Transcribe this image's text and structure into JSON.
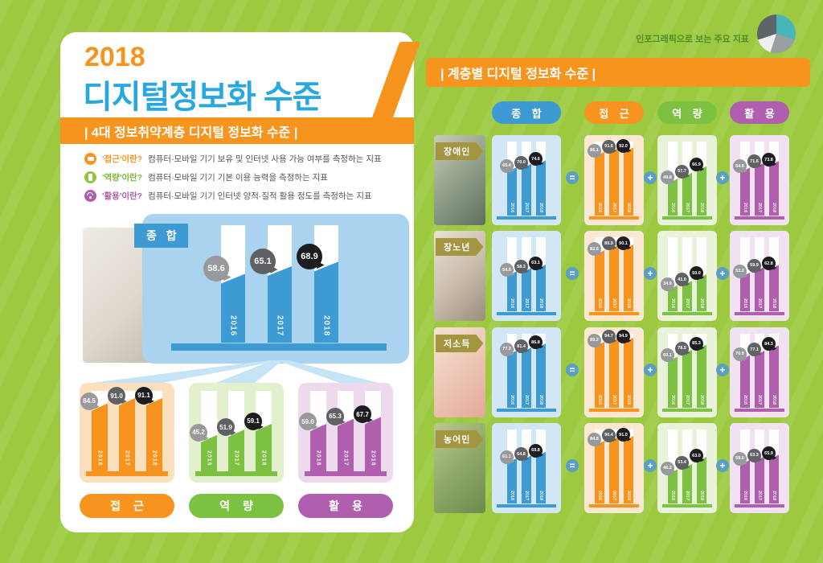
{
  "meta": {
    "note": "인포그래픽으로 보는 주요 지표"
  },
  "left": {
    "year": "2018",
    "title": "디지털정보화 수준",
    "subtitle": "| 4대 정보취약계층 디지털 정보화 수준 |",
    "legend": [
      {
        "term": "'접근'이란?",
        "desc": "컴퓨터·모바일 기기 보유 및 인터넷 사용 가능 여부를 측정하는 지표",
        "color": "#f7941d",
        "icon": "monitor-icon"
      },
      {
        "term": "'역량'이란?",
        "desc": "컴퓨터·모바일 기기 기본 이용 능력을 측정하는 지표",
        "color": "#8cc63f",
        "icon": "mobile-icon"
      },
      {
        "term": "'활용'이란?",
        "desc": "컴퓨터·모바일 기기 인터넷 양적·질적 활용 정도를 측정하는 지표",
        "color": "#b05fae",
        "icon": "wifi-icon"
      }
    ]
  },
  "right": {
    "header": "| 계층별 디지털 정보화 수준 |",
    "columns": [
      "종 합",
      "접 근",
      "역 량",
      "활 용"
    ]
  },
  "ops": {
    "equals": "=",
    "plus": "+"
  },
  "chart_data": {
    "type": "bar",
    "years": [
      "2016",
      "2017",
      "2018"
    ],
    "ylim": [
      0,
      100
    ],
    "unit": "점(%)",
    "colors": {
      "blue": "#3d9ad3",
      "orange": "#f79420",
      "green": "#7cc142",
      "purple": "#b05fae"
    },
    "bubble_colors_by_year": [
      "#97999c",
      "#5f6165",
      "#1d1d20"
    ],
    "overall": {
      "label": "종 합",
      "values": [
        58.6,
        65.1,
        68.9
      ],
      "components": [
        {
          "key": "access",
          "label": "접 근",
          "values": [
            84.5,
            91.0,
            91.1
          ]
        },
        {
          "key": "capability",
          "label": "역 량",
          "values": [
            45.2,
            51.9,
            59.1
          ]
        },
        {
          "key": "utilization",
          "label": "활 용",
          "values": [
            59.0,
            65.3,
            67.7
          ]
        }
      ]
    },
    "groups": [
      {
        "name": "장애인",
        "total": [
          65.4,
          70.0,
          74.6
        ],
        "access": [
          86.1,
          91.6,
          92.0
        ],
        "capability": [
          49.8,
          57.7,
          66.9
        ],
        "utilization": [
          64.8,
          71.6,
          73.8
        ]
      },
      {
        "name": "장노년",
        "total": [
          54.0,
          58.3,
          63.1
        ],
        "access": [
          82.5,
          89.9,
          90.1
        ],
        "capability": [
          34.9,
          41.0,
          50.0
        ],
        "utilization": [
          52.2,
          59.9,
          62.8
        ]
      },
      {
        "name": "저소득",
        "total": [
          77.3,
          81.4,
          86.8
        ],
        "access": [
          89.2,
          94.7,
          94.9
        ],
        "capability": [
          69.1,
          78.5,
          85.3
        ],
        "utilization": [
          70.9,
          77.1,
          84.3
        ]
      },
      {
        "name": "농어민",
        "total": [
          61.1,
          64.8,
          69.8
        ],
        "access": [
          84.8,
          90.4,
          91.0
        ],
        "capability": [
          46.2,
          53.4,
          63.0
        ],
        "utilization": [
          59.0,
          63.3,
          65.9
        ]
      }
    ]
  }
}
